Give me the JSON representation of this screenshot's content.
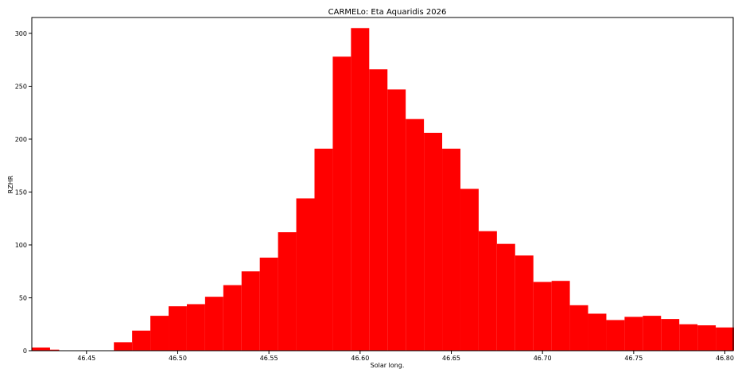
{
  "chart_data": {
    "type": "bar",
    "title": "CARMELo: Eta Aquaridis 2026",
    "xlabel": "Solar long.",
    "ylabel": "RZHR",
    "xlim": [
      46.42,
      46.805
    ],
    "ylim": [
      0,
      315
    ],
    "xticks": [
      "46.45",
      "46.50",
      "46.55",
      "46.60",
      "46.65",
      "46.70",
      "46.75",
      "46.80"
    ],
    "yticks": [
      "0",
      "50",
      "100",
      "150",
      "200",
      "250",
      "300"
    ],
    "bin_width": 0.01,
    "bar_color": "#ff0000",
    "bins": [
      {
        "x": 46.42,
        "y": 3
      },
      {
        "x": 46.425,
        "y": 1
      },
      {
        "x": 46.435,
        "y": 0
      },
      {
        "x": 46.445,
        "y": 0
      },
      {
        "x": 46.455,
        "y": 0
      },
      {
        "x": 46.465,
        "y": 8
      },
      {
        "x": 46.475,
        "y": 19
      },
      {
        "x": 46.485,
        "y": 33
      },
      {
        "x": 46.495,
        "y": 42
      },
      {
        "x": 46.505,
        "y": 44
      },
      {
        "x": 46.515,
        "y": 51
      },
      {
        "x": 46.525,
        "y": 62
      },
      {
        "x": 46.535,
        "y": 75
      },
      {
        "x": 46.545,
        "y": 88
      },
      {
        "x": 46.555,
        "y": 112
      },
      {
        "x": 46.565,
        "y": 144
      },
      {
        "x": 46.575,
        "y": 191
      },
      {
        "x": 46.585,
        "y": 278
      },
      {
        "x": 46.595,
        "y": 305
      },
      {
        "x": 46.605,
        "y": 266
      },
      {
        "x": 46.615,
        "y": 247
      },
      {
        "x": 46.625,
        "y": 219
      },
      {
        "x": 46.635,
        "y": 206
      },
      {
        "x": 46.645,
        "y": 191
      },
      {
        "x": 46.655,
        "y": 153
      },
      {
        "x": 46.665,
        "y": 113
      },
      {
        "x": 46.675,
        "y": 101
      },
      {
        "x": 46.685,
        "y": 90
      },
      {
        "x": 46.695,
        "y": 65
      },
      {
        "x": 46.705,
        "y": 66
      },
      {
        "x": 46.715,
        "y": 43
      },
      {
        "x": 46.725,
        "y": 35
      },
      {
        "x": 46.735,
        "y": 29
      },
      {
        "x": 46.745,
        "y": 32
      },
      {
        "x": 46.755,
        "y": 33
      },
      {
        "x": 46.765,
        "y": 30
      },
      {
        "x": 46.775,
        "y": 25
      },
      {
        "x": 46.785,
        "y": 24
      },
      {
        "x": 46.795,
        "y": 22
      }
    ]
  }
}
